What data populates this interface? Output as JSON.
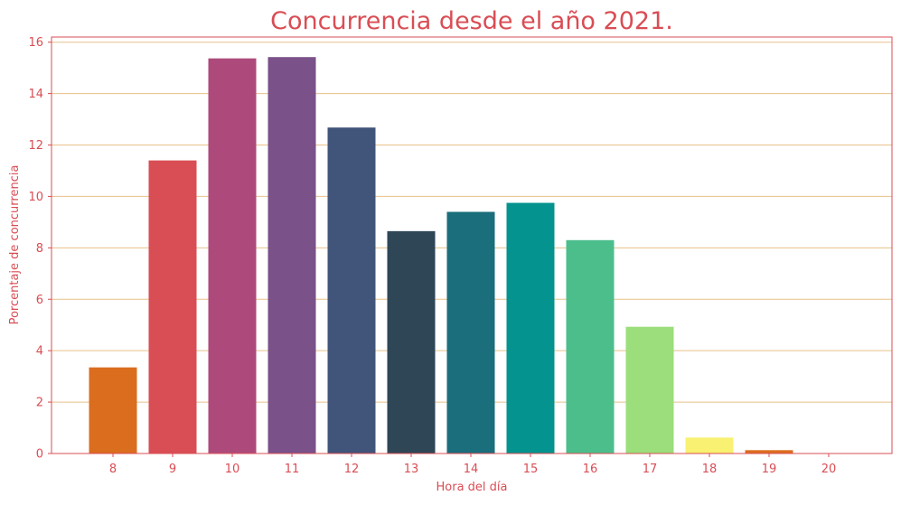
{
  "chart_data": {
    "type": "bar",
    "title": "Concurrencia desde el año 2021.",
    "xlabel": "Hora del día",
    "ylabel": "Porcentaje de concurrencia",
    "categories": [
      "8",
      "9",
      "10",
      "11",
      "12",
      "13",
      "14",
      "15",
      "16",
      "17",
      "18",
      "19",
      "20"
    ],
    "values": [
      3.35,
      11.4,
      15.37,
      15.42,
      12.68,
      8.65,
      9.4,
      9.75,
      8.3,
      4.93,
      0.62,
      0.13,
      0.0
    ],
    "bar_colors": [
      "#db6d1e",
      "#d94d54",
      "#ad4a7b",
      "#7a5189",
      "#415479",
      "#2e4656",
      "#1b6e7b",
      "#04938e",
      "#4cbe8c",
      "#9bde7b",
      "#f8f171",
      "#db6d1e",
      "#d94d54"
    ],
    "ylim": [
      0,
      16.2
    ],
    "y_ticks": [
      0,
      2,
      4,
      6,
      8,
      10,
      12,
      14,
      16
    ],
    "grid": "horizontal",
    "text_color": "#d94d54",
    "grid_color": "#e8c08a",
    "frame_color": "#d94d54"
  }
}
